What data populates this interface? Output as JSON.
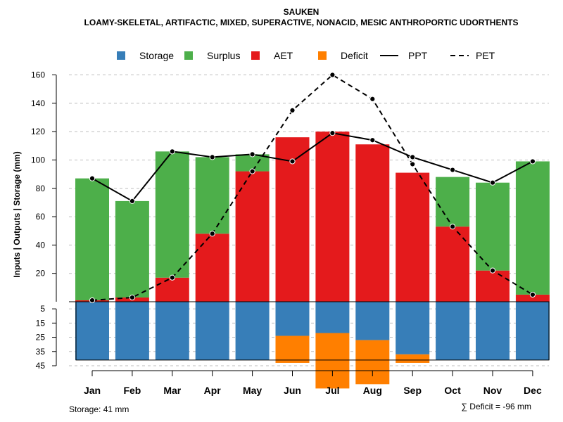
{
  "chart_data": {
    "type": "bar",
    "title": "SAUKEN",
    "subtitle": "LOAMY-SKELETAL, ARTIFACTIC, MIXED, SUPERACTIVE, NONACID, MESIC ANTHROPORTIC UDORTHENTS",
    "ylabel": "Inputs | Outputs | Storage    (mm)",
    "ylim_top": [
      0,
      160
    ],
    "ylim_bottom": [
      0,
      45
    ],
    "upper_ticks": [
      "20",
      "40",
      "60",
      "80",
      "100",
      "120",
      "140",
      "160"
    ],
    "lower_ticks": [
      "5",
      "15",
      "25",
      "35",
      "45"
    ],
    "categories": [
      "Jan",
      "Feb",
      "Mar",
      "Apr",
      "May",
      "Jun",
      "Jul",
      "Aug",
      "Sep",
      "Oct",
      "Nov",
      "Dec"
    ],
    "series": [
      {
        "name": "Storage",
        "color": "#377EB8",
        "values": [
          41,
          41,
          41,
          41,
          41,
          24,
          22,
          27,
          37,
          41,
          41,
          41
        ]
      },
      {
        "name": "Surplus",
        "color": "#4DAF4A",
        "values": [
          86,
          68,
          89,
          54,
          12,
          0,
          0,
          0,
          0,
          35,
          62,
          94
        ]
      },
      {
        "name": "AET",
        "color": "#E41A1C",
        "values": [
          1,
          3,
          17,
          48,
          92,
          116,
          120,
          111,
          91,
          53,
          22,
          5
        ]
      },
      {
        "name": "Deficit",
        "color": "#FF7F00",
        "values": [
          0,
          0,
          0,
          0,
          0,
          19,
          39,
          31,
          6,
          0,
          0,
          0
        ]
      },
      {
        "name": "PPT",
        "color": "#000000",
        "style": "solid",
        "values": [
          87,
          71,
          106,
          102,
          104,
          99,
          119,
          114,
          102,
          93,
          84,
          99
        ]
      },
      {
        "name": "PET",
        "color": "#000000",
        "style": "dashed",
        "values": [
          1,
          3,
          17,
          48,
          92,
          135,
          160,
          143,
          97,
          53,
          22,
          5
        ]
      }
    ],
    "legend": [
      "Storage",
      "Surplus",
      "AET",
      "Deficit",
      "PPT",
      "PET"
    ],
    "storage_note": "Storage: 41 mm",
    "deficit_note": "∑ Deficit = -96 mm"
  }
}
